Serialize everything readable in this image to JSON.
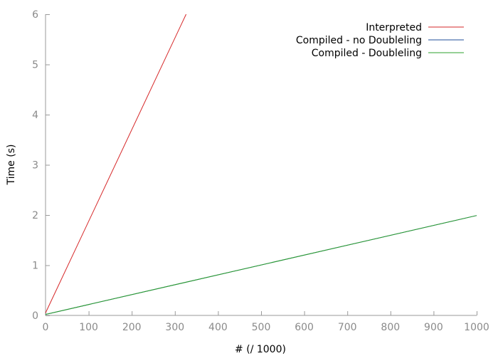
{
  "chart_data": {
    "type": "line",
    "title": "",
    "xlabel": "# (/ 1000)",
    "ylabel": "Time (s)",
    "xlim": [
      0,
      1000
    ],
    "ylim": [
      0,
      6
    ],
    "x_ticks": [
      0,
      100,
      200,
      300,
      400,
      500,
      600,
      700,
      800,
      900,
      1000
    ],
    "y_ticks": [
      0,
      1,
      2,
      3,
      4,
      5,
      6
    ],
    "grid": false,
    "legend_position": "top-right",
    "series": [
      {
        "name": "Interpreted",
        "color": "#d62728",
        "points": [
          [
            0,
            0.05
          ],
          [
            326,
            6.0
          ]
        ]
      },
      {
        "name": "Compiled - no Doubleling",
        "color": "#1f4e9a",
        "points": [
          [
            0,
            0.02
          ],
          [
            1000,
            1.99
          ]
        ]
      },
      {
        "name": "Compiled - Doubleling",
        "color": "#2ca02c",
        "points": [
          [
            0,
            0.02
          ],
          [
            1000,
            1.99
          ]
        ]
      }
    ]
  }
}
